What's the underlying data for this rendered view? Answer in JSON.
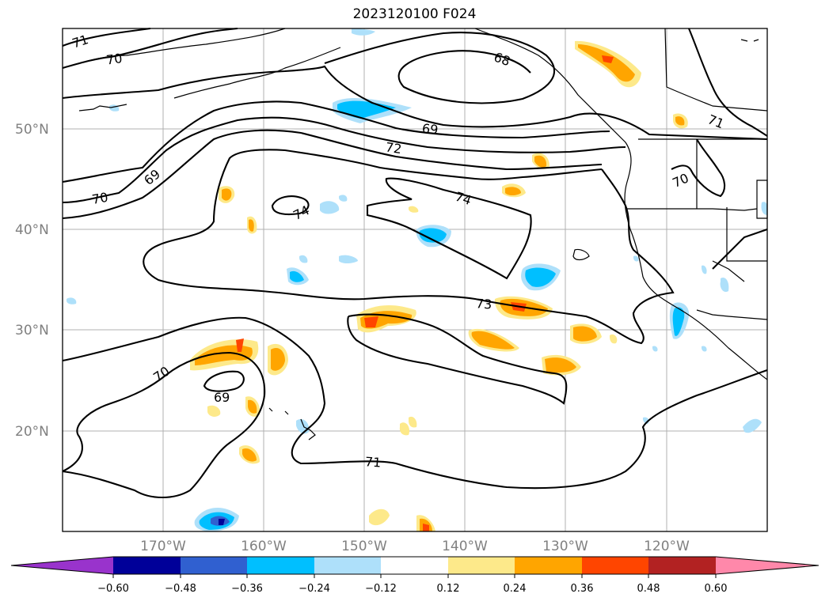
{
  "title": "2023120100 F024",
  "colors": {
    "coast": "#000000",
    "contour": "#000000",
    "grid": "#b0b0b0",
    "grid_label": "#808080",
    "neg": [
      "#9933cc",
      "#000099",
      "#3060d0",
      "#00bfff",
      "#aee0fa"
    ],
    "neutral": "#ffffff",
    "pos": [
      "#fde98a",
      "#ffa500",
      "#ff4500",
      "#b22222",
      "#ff88aa"
    ]
  },
  "gridlines": {
    "lon_labels": [
      "170°W",
      "160°W",
      "150°W",
      "140°W",
      "130°W",
      "120°W"
    ],
    "lat_labels": [
      "50°N",
      "40°N",
      "30°N",
      "20°N"
    ]
  },
  "contour_labels": [
    "71",
    "70",
    "68",
    "69",
    "72",
    "69",
    "70",
    "74",
    "74",
    "73",
    "70",
    "69",
    "71",
    "71",
    "70"
  ],
  "colorbar": {
    "ticks": [
      "−0.60",
      "−0.48",
      "−0.36",
      "−0.24",
      "−0.12",
      "0.12",
      "0.24",
      "0.36",
      "0.48",
      "0.60"
    ]
  }
}
